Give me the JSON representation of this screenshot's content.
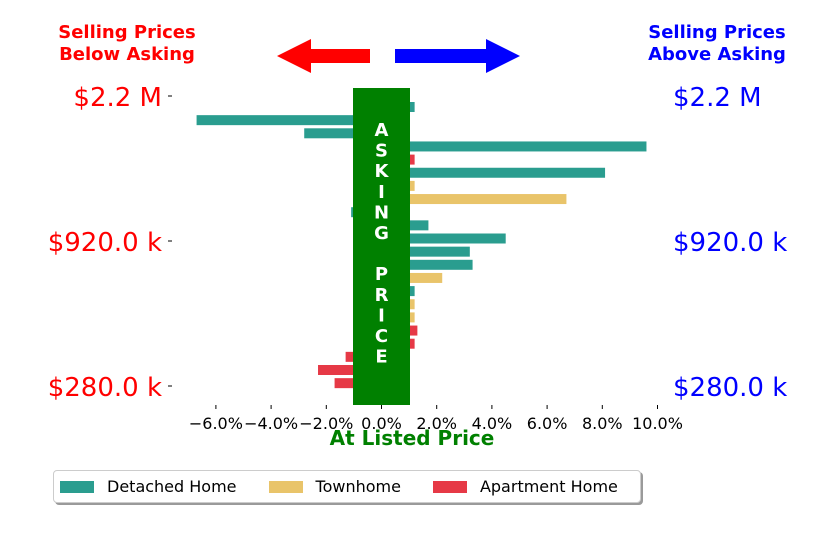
{
  "header": {
    "left_caption": [
      "Selling Prices",
      "Below Asking"
    ],
    "right_caption": [
      "Selling Prices",
      "Above Asking"
    ]
  },
  "colors": {
    "detached": "#2a9d8f",
    "townhome": "#e9c46a",
    "apartment": "#e63946",
    "below": "#ff0000",
    "above": "#0000ff",
    "asking": "#008000"
  },
  "icons": {
    "left": "left-arrow-icon",
    "right": "right-arrow-icon"
  },
  "chart_data": {
    "type": "bar",
    "orientation": "horizontal",
    "xlabel": "At Listed Price",
    "x_ticks": [
      "−6.0%",
      "−4.0%",
      "−2.0%",
      "0.0%",
      "2.0%",
      "4.0%",
      "6.0%",
      "8.0%",
      "10.0%"
    ],
    "x_tick_values": [
      -6,
      -4,
      -2,
      0,
      2,
      4,
      6,
      8,
      10
    ],
    "xlim": [
      -7,
      10
    ],
    "asking_band_label": "ASKING PRICE",
    "y_tick_labels": [
      "$2.2 M",
      "$920.0 k",
      "$280.0 k"
    ],
    "bars": [
      {
        "series": "Detached Home",
        "value": 1.2
      },
      {
        "series": "Detached Home",
        "value": -6.7
      },
      {
        "series": "Detached Home",
        "value": -2.8
      },
      {
        "series": "Detached Home",
        "value": 9.6
      },
      {
        "series": "Apartment Home",
        "value": 1.2
      },
      {
        "series": "Detached Home",
        "value": 8.1
      },
      {
        "series": "Townhome",
        "value": 1.2
      },
      {
        "series": "Townhome",
        "value": 6.7
      },
      {
        "series": "Detached Home",
        "value": -1.1
      },
      {
        "series": "Detached Home",
        "value": 1.7
      },
      {
        "series": "Detached Home",
        "value": 4.5
      },
      {
        "series": "Detached Home",
        "value": 3.2
      },
      {
        "series": "Detached Home",
        "value": 3.3
      },
      {
        "series": "Townhome",
        "value": 2.2
      },
      {
        "series": "Detached Home",
        "value": 1.2
      },
      {
        "series": "Townhome",
        "value": 1.2
      },
      {
        "series": "Townhome",
        "value": 1.2
      },
      {
        "series": "Apartment Home",
        "value": 1.3
      },
      {
        "series": "Apartment Home",
        "value": 1.2
      },
      {
        "series": "Apartment Home",
        "value": -1.3
      },
      {
        "series": "Apartment Home",
        "value": -2.3
      },
      {
        "series": "Apartment Home",
        "value": -1.7
      }
    ],
    "legend": [
      {
        "name": "Detached Home",
        "color": "#2a9d8f"
      },
      {
        "name": "Townhome",
        "color": "#e9c46a"
      },
      {
        "name": "Apartment Home",
        "color": "#e63946"
      }
    ],
    "legend_position": "bottom-left"
  }
}
